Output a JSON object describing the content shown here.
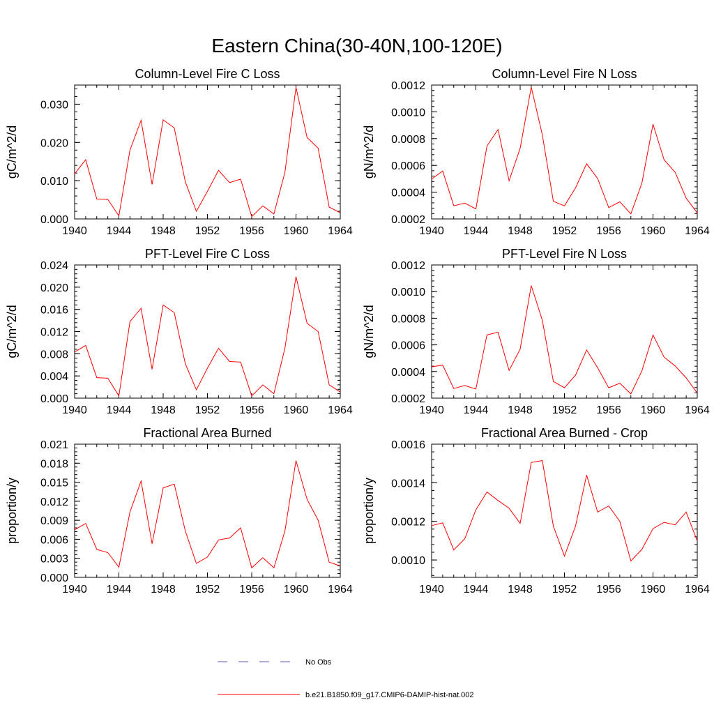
{
  "figure": {
    "title": "Eastern China(30-40N,100-120E)",
    "legend": [
      {
        "label": "No Obs",
        "color": "#5a5aa8",
        "style": "dashed"
      },
      {
        "label": "b.e21.B1850.f09_g17.CMIP6-DAMIP-hist-nat.002",
        "color": "#ff0000",
        "style": "solid"
      }
    ]
  },
  "chart_data": [
    {
      "type": "line",
      "title": "Column-Level Fire C Loss",
      "ylabel": "gC/m^2/d",
      "xlim": [
        1940,
        1964
      ],
      "ylim": [
        0,
        0.035
      ],
      "yticks": [
        0,
        0.01,
        0.02,
        0.03
      ],
      "ytick_labels": [
        "0.000",
        "0.010",
        "0.020",
        "0.030"
      ],
      "xticks": [
        1940,
        1944,
        1948,
        1952,
        1956,
        1960,
        1964
      ],
      "series": [
        {
          "color": "#ff0000",
          "x": [
            1940,
            1941,
            1942,
            1943,
            1944,
            1945,
            1946,
            1947,
            1948,
            1949,
            1950,
            1951,
            1952,
            1953,
            1954,
            1955,
            1956,
            1957,
            1958,
            1959,
            1960,
            1961,
            1962,
            1963,
            1964
          ],
          "y": [
            0.0118,
            0.0155,
            0.0052,
            0.0051,
            0.0008,
            0.018,
            0.0258,
            0.009,
            0.0259,
            0.0238,
            0.0097,
            0.002,
            0.0072,
            0.0127,
            0.0095,
            0.0104,
            0.0006,
            0.0034,
            0.0013,
            0.0122,
            0.0344,
            0.0213,
            0.0185,
            0.0031,
            0.0016
          ]
        }
      ]
    },
    {
      "type": "line",
      "title": "Column-Level Fire N Loss",
      "ylabel": "gN/m^2/d",
      "xlim": [
        1940,
        1964
      ],
      "ylim": [
        0.0002,
        0.0012
      ],
      "yticks": [
        0.0002,
        0.0004,
        0.0006,
        0.0008,
        0.001,
        0.0012
      ],
      "ytick_labels": [
        "0.0002",
        "0.0004",
        "0.0006",
        "0.0008",
        "0.0010",
        "0.0012"
      ],
      "xticks": [
        1940,
        1944,
        1948,
        1952,
        1956,
        1960,
        1964
      ],
      "series": [
        {
          "color": "#ff0000",
          "x": [
            1940,
            1941,
            1942,
            1943,
            1944,
            1945,
            1946,
            1947,
            1948,
            1949,
            1950,
            1951,
            1952,
            1953,
            1954,
            1955,
            1956,
            1957,
            1958,
            1959,
            1960,
            1961,
            1962,
            1963,
            1964
          ],
          "y": [
            0.000498,
            0.000558,
            0.000298,
            0.000318,
            0.000275,
            0.000745,
            0.000868,
            0.000485,
            0.000728,
            0.001185,
            0.000828,
            0.000332,
            0.000298,
            0.000432,
            0.000612,
            0.000502,
            0.000285,
            0.000328,
            0.000238,
            0.000468,
            0.000908,
            0.000642,
            0.000548,
            0.000355,
            0.000245
          ]
        }
      ]
    },
    {
      "type": "line",
      "title": "PFT-Level Fire C Loss",
      "ylabel": "gC/m^2/d",
      "xlim": [
        1940,
        1964
      ],
      "ylim": [
        0,
        0.024
      ],
      "yticks": [
        0,
        0.004,
        0.008,
        0.012,
        0.016,
        0.02,
        0.024
      ],
      "ytick_labels": [
        "0.000",
        "0.004",
        "0.008",
        "0.012",
        "0.016",
        "0.020",
        "0.024"
      ],
      "xticks": [
        1940,
        1944,
        1948,
        1952,
        1956,
        1960,
        1964
      ],
      "series": [
        {
          "color": "#ff0000",
          "x": [
            1940,
            1941,
            1942,
            1943,
            1944,
            1945,
            1946,
            1947,
            1948,
            1949,
            1950,
            1951,
            1952,
            1953,
            1954,
            1955,
            1956,
            1957,
            1958,
            1959,
            1960,
            1961,
            1962,
            1963,
            1964
          ],
          "y": [
            0.0083,
            0.0095,
            0.0037,
            0.0036,
            0.0004,
            0.0138,
            0.0162,
            0.0052,
            0.0168,
            0.0154,
            0.0062,
            0.0015,
            0.0054,
            0.009,
            0.0066,
            0.0065,
            0.0004,
            0.0024,
            0.0008,
            0.009,
            0.0219,
            0.0135,
            0.012,
            0.0024,
            0.0011
          ]
        }
      ]
    },
    {
      "type": "line",
      "title": "PFT-Level Fire N Loss",
      "ylabel": "gN/m^2/d",
      "xlim": [
        1940,
        1964
      ],
      "ylim": [
        0.0002,
        0.0012
      ],
      "yticks": [
        0.0002,
        0.0004,
        0.0006,
        0.0008,
        0.001,
        0.0012
      ],
      "ytick_labels": [
        "0.0002",
        "0.0004",
        "0.0006",
        "0.0008",
        "0.0010",
        "0.0012"
      ],
      "xticks": [
        1940,
        1944,
        1948,
        1952,
        1956,
        1960,
        1964
      ],
      "series": [
        {
          "color": "#ff0000",
          "x": [
            1940,
            1941,
            1942,
            1943,
            1944,
            1945,
            1946,
            1947,
            1948,
            1949,
            1950,
            1951,
            1952,
            1953,
            1954,
            1955,
            1956,
            1957,
            1958,
            1959,
            1960,
            1961,
            1962,
            1963,
            1964
          ],
          "y": [
            0.000435,
            0.000448,
            0.000272,
            0.000295,
            0.000268,
            0.000675,
            0.000695,
            0.000408,
            0.000568,
            0.001045,
            0.000785,
            0.000325,
            0.000278,
            0.000372,
            0.000562,
            0.000428,
            0.000278,
            0.000312,
            0.000232,
            0.000405,
            0.000675,
            0.000508,
            0.000442,
            0.000352,
            0.000238
          ]
        }
      ]
    },
    {
      "type": "line",
      "title": "Fractional Area Burned",
      "ylabel": "proportion/y",
      "xlim": [
        1940,
        1964
      ],
      "ylim": [
        0,
        0.021
      ],
      "yticks": [
        0,
        0.003,
        0.006,
        0.009,
        0.012,
        0.015,
        0.018,
        0.021
      ],
      "ytick_labels": [
        "0.000",
        "0.003",
        "0.006",
        "0.009",
        "0.012",
        "0.015",
        "0.018",
        "0.021"
      ],
      "xticks": [
        1940,
        1944,
        1948,
        1952,
        1956,
        1960,
        1964
      ],
      "series": [
        {
          "color": "#ff0000",
          "x": [
            1940,
            1941,
            1942,
            1943,
            1944,
            1945,
            1946,
            1947,
            1948,
            1949,
            1950,
            1951,
            1952,
            1953,
            1954,
            1955,
            1956,
            1957,
            1958,
            1959,
            1960,
            1961,
            1962,
            1963,
            1964
          ],
          "y": [
            0.0075,
            0.0085,
            0.0044,
            0.0039,
            0.0016,
            0.0103,
            0.0152,
            0.0053,
            0.0141,
            0.0147,
            0.0073,
            0.0022,
            0.0032,
            0.0059,
            0.0062,
            0.0078,
            0.0015,
            0.0031,
            0.0015,
            0.0073,
            0.0184,
            0.0123,
            0.009,
            0.0024,
            0.0018
          ]
        }
      ]
    },
    {
      "type": "line",
      "title": "Fractional Area Burned - Crop",
      "ylabel": "proportion/y",
      "xlim": [
        1940,
        1964
      ],
      "ylim": [
        0.00091,
        0.0016
      ],
      "yticks": [
        0.001,
        0.0012,
        0.0014,
        0.0016
      ],
      "ytick_labels": [
        "0.0010",
        "0.0012",
        "0.0014",
        "0.0016"
      ],
      "xticks": [
        1940,
        1944,
        1948,
        1952,
        1956,
        1960,
        1964
      ],
      "series": [
        {
          "color": "#ff0000",
          "x": [
            1940,
            1941,
            1942,
            1943,
            1944,
            1945,
            1946,
            1947,
            1948,
            1949,
            1950,
            1951,
            1952,
            1953,
            1954,
            1955,
            1956,
            1957,
            1958,
            1959,
            1960,
            1961,
            1962,
            1963,
            1964
          ],
          "y": [
            0.001178,
            0.001192,
            0.001052,
            0.00111,
            0.00126,
            0.001352,
            0.001308,
            0.001268,
            0.00119,
            0.001505,
            0.001515,
            0.001175,
            0.00102,
            0.001175,
            0.00144,
            0.001248,
            0.00128,
            0.0012,
            0.000995,
            0.001055,
            0.001162,
            0.001195,
            0.001182,
            0.001248,
            0.001098
          ]
        }
      ]
    }
  ]
}
